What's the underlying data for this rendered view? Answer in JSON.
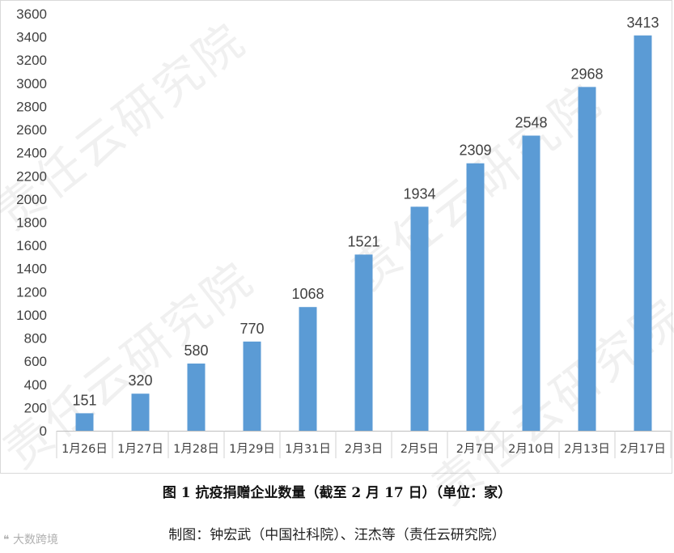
{
  "chart_data": {
    "type": "bar",
    "categories": [
      "1月26日",
      "1月27日",
      "1月28日",
      "1月29日",
      "1月31日",
      "2月3日",
      "2月5日",
      "2月7日",
      "2月10日",
      "2月13日",
      "2月17日"
    ],
    "values": [
      151,
      320,
      580,
      770,
      1068,
      1521,
      1934,
      2309,
      2548,
      2968,
      3413
    ],
    "ylim": [
      0,
      3600
    ],
    "ytick_step": 200,
    "grid": false,
    "bar_color": "#5b9bd5",
    "title": "",
    "xlabel": "",
    "ylabel": ""
  },
  "caption": "图 1 抗疫捐赠企业数量（截至 2 月 17 日）（单位：家）",
  "credit": "制图：钟宏武（中国社科院）、汪杰等（责任云研究院）",
  "watermark_text": "责任云研究院",
  "corner_logo": "大数跨境"
}
